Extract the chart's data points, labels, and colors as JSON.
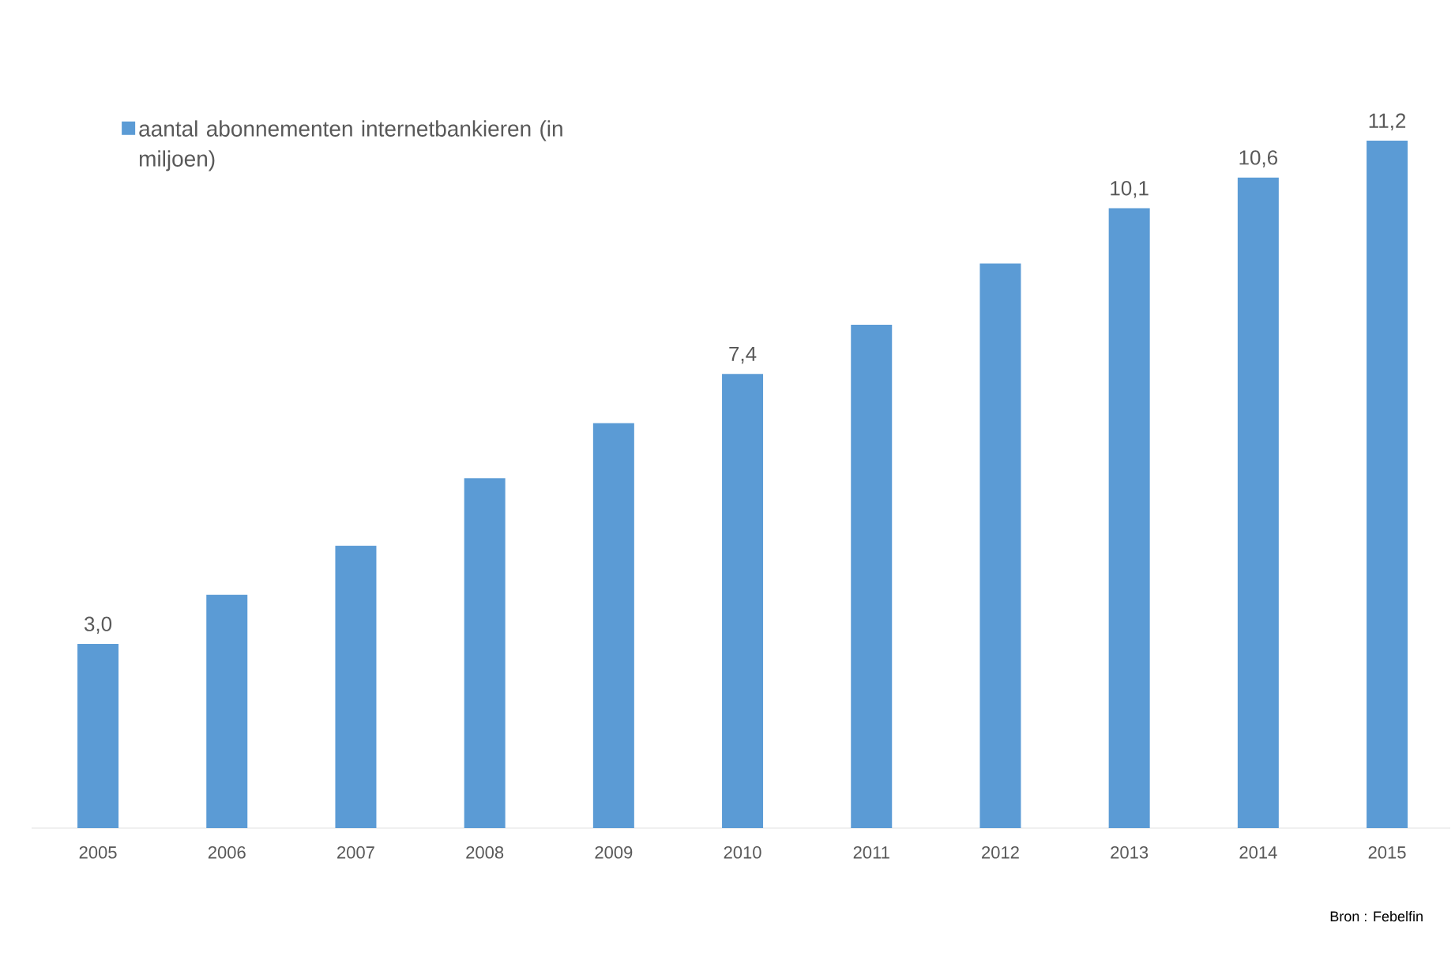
{
  "chart_data": {
    "type": "bar",
    "categories": [
      "2005",
      "2006",
      "2007",
      "2008",
      "2009",
      "2010",
      "2011",
      "2012",
      "2013",
      "2014",
      "2015"
    ],
    "series": [
      {
        "name": "aantal abonnementen internetbankieren (in miljoen)",
        "color": "#5b9bd5",
        "values": [
          3.0,
          3.8,
          4.6,
          5.7,
          6.6,
          7.4,
          8.2,
          9.2,
          10.1,
          10.6,
          11.2
        ],
        "value_labels": [
          "3,0",
          null,
          null,
          null,
          null,
          "7,4",
          null,
          null,
          "10,1",
          "10,6",
          "11,2"
        ]
      }
    ],
    "tick_labels": "x",
    "legend": "top left",
    "annotations": [
      "Bron : Febelfin"
    ]
  }
}
